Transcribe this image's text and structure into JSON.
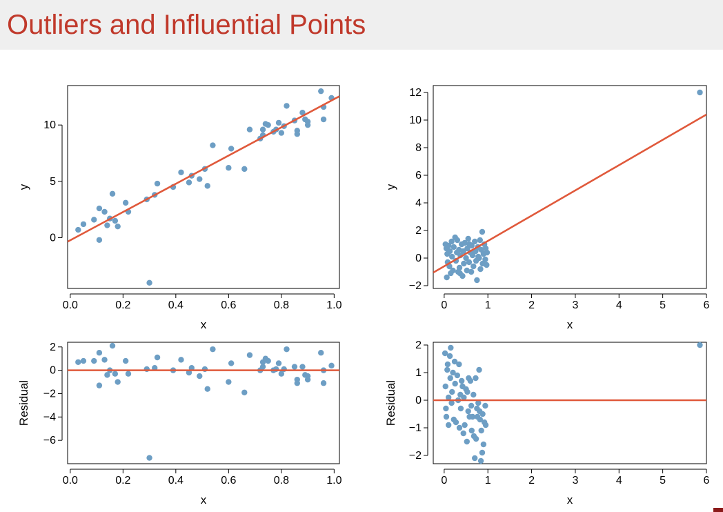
{
  "title": "Outliers and Influential Points",
  "colors": {
    "title": "#c0392b",
    "points": "#6d9ec4",
    "line": "#e0593b",
    "band": "#efefef"
  },
  "chart_data": [
    {
      "id": "p1",
      "type": "scatter",
      "xlabel": "x",
      "ylabel": "y",
      "xlim": [
        -0.01,
        1.02
      ],
      "ylim": [
        -4.5,
        13.5
      ],
      "xticks": [
        "0.0",
        "0.2",
        "0.4",
        "0.6",
        "0.8",
        "1.0"
      ],
      "xtick_values": [
        0,
        0.2,
        0.4,
        0.6,
        0.8,
        1.0
      ],
      "yticks": [
        "0",
        "5",
        "10"
      ],
      "ytick_values": [
        0,
        5,
        10
      ],
      "line": {
        "x": [
          -0.01,
          1.02
        ],
        "y": [
          -0.35,
          12.55
        ]
      },
      "points": [
        [
          0.03,
          0.7
        ],
        [
          0.05,
          1.2
        ],
        [
          0.09,
          1.6
        ],
        [
          0.11,
          2.6
        ],
        [
          0.11,
          -0.2
        ],
        [
          0.13,
          2.3
        ],
        [
          0.14,
          1.1
        ],
        [
          0.15,
          1.7
        ],
        [
          0.16,
          3.9
        ],
        [
          0.17,
          1.5
        ],
        [
          0.18,
          1.0
        ],
        [
          0.21,
          3.1
        ],
        [
          0.22,
          2.3
        ],
        [
          0.29,
          3.4
        ],
        [
          0.3,
          -4.0
        ],
        [
          0.32,
          3.8
        ],
        [
          0.33,
          4.8
        ],
        [
          0.39,
          4.5
        ],
        [
          0.42,
          5.8
        ],
        [
          0.45,
          4.9
        ],
        [
          0.46,
          5.5
        ],
        [
          0.49,
          5.2
        ],
        [
          0.51,
          6.1
        ],
        [
          0.52,
          4.6
        ],
        [
          0.54,
          8.2
        ],
        [
          0.6,
          6.2
        ],
        [
          0.61,
          7.9
        ],
        [
          0.66,
          6.1
        ],
        [
          0.68,
          9.6
        ],
        [
          0.72,
          8.8
        ],
        [
          0.73,
          9.1
        ],
        [
          0.73,
          9.6
        ],
        [
          0.74,
          10.1
        ],
        [
          0.75,
          10.0
        ],
        [
          0.77,
          9.4
        ],
        [
          0.78,
          9.6
        ],
        [
          0.79,
          10.2
        ],
        [
          0.8,
          9.3
        ],
        [
          0.81,
          9.9
        ],
        [
          0.82,
          11.7
        ],
        [
          0.85,
          10.4
        ],
        [
          0.86,
          9.2
        ],
        [
          0.86,
          9.5
        ],
        [
          0.88,
          11.1
        ],
        [
          0.89,
          10.5
        ],
        [
          0.9,
          10.0
        ],
        [
          0.9,
          10.3
        ],
        [
          0.95,
          13.0
        ],
        [
          0.96,
          10.5
        ],
        [
          0.96,
          11.6
        ],
        [
          0.99,
          12.4
        ]
      ]
    },
    {
      "id": "p2",
      "type": "scatter",
      "xlabel": "x",
      "ylabel": "y",
      "xlim": [
        -0.25,
        6.0
      ],
      "ylim": [
        -2.2,
        12.5
      ],
      "xticks": [
        "0",
        "1",
        "2",
        "3",
        "4",
        "5",
        "6"
      ],
      "xtick_values": [
        0,
        1,
        2,
        3,
        4,
        5,
        6
      ],
      "yticks": [
        "−2",
        "0",
        "2",
        "4",
        "6",
        "8",
        "10",
        "12"
      ],
      "ytick_values": [
        -2,
        0,
        2,
        4,
        6,
        8,
        10,
        12
      ],
      "line": {
        "x": [
          -0.25,
          6.0
        ],
        "y": [
          -1.05,
          10.4
        ]
      },
      "points": [
        [
          0.03,
          1.0
        ],
        [
          0.05,
          0.7
        ],
        [
          0.07,
          0.3
        ],
        [
          0.08,
          -0.3
        ],
        [
          0.1,
          0.9
        ],
        [
          0.12,
          -0.6
        ],
        [
          0.13,
          0.5
        ],
        [
          0.15,
          -1.1
        ],
        [
          0.17,
          1.2
        ],
        [
          0.18,
          0.1
        ],
        [
          0.2,
          -0.9
        ],
        [
          0.22,
          0.8
        ],
        [
          0.25,
          1.5
        ],
        [
          0.27,
          -0.2
        ],
        [
          0.29,
          0.4
        ],
        [
          0.3,
          1.3
        ],
        [
          0.32,
          -1.0
        ],
        [
          0.34,
          0.6
        ],
        [
          0.35,
          -0.7
        ],
        [
          0.37,
          0.2
        ],
        [
          0.4,
          1.0
        ],
        [
          0.42,
          -1.3
        ],
        [
          0.44,
          0.5
        ],
        [
          0.45,
          -0.4
        ],
        [
          0.47,
          1.1
        ],
        [
          0.5,
          0.0
        ],
        [
          0.52,
          -0.9
        ],
        [
          0.53,
          0.7
        ],
        [
          0.55,
          1.4
        ],
        [
          0.57,
          -0.3
        ],
        [
          0.6,
          0.4
        ],
        [
          0.62,
          -1.0
        ],
        [
          0.63,
          0.9
        ],
        [
          0.65,
          0.2
        ],
        [
          0.67,
          -0.6
        ],
        [
          0.7,
          1.2
        ],
        [
          0.72,
          0.5
        ],
        [
          0.73,
          -0.2
        ],
        [
          0.75,
          -1.6
        ],
        [
          0.77,
          0.8
        ],
        [
          0.8,
          0.0
        ],
        [
          0.82,
          1.3
        ],
        [
          0.83,
          -0.8
        ],
        [
          0.85,
          0.6
        ],
        [
          0.87,
          1.9
        ],
        [
          0.88,
          -0.4
        ],
        [
          0.9,
          0.3
        ],
        [
          0.92,
          1.0
        ],
        [
          0.94,
          -0.1
        ],
        [
          0.95,
          0.7
        ],
        [
          0.97,
          -0.5
        ],
        [
          0.98,
          0.4
        ],
        [
          0.06,
          -1.4
        ],
        [
          0.36,
          -1.1
        ],
        [
          0.58,
          1.0
        ],
        [
          0.78,
          0.1
        ],
        [
          5.85,
          12.0
        ]
      ]
    },
    {
      "id": "p3",
      "type": "scatter",
      "xlabel": "x",
      "ylabel": "Residual",
      "xlim": [
        -0.01,
        1.02
      ],
      "ylim": [
        -8.0,
        2.4
      ],
      "xticks": [
        "0.0",
        "0.2",
        "0.4",
        "0.6",
        "0.8",
        "1.0"
      ],
      "xtick_values": [
        0,
        0.2,
        0.4,
        0.6,
        0.8,
        1.0
      ],
      "yticks": [
        "−6",
        "−4",
        "−2",
        "0",
        "2"
      ],
      "ytick_values": [
        -6,
        -4,
        -2,
        0,
        2
      ],
      "line": {
        "x": [
          -0.01,
          1.02
        ],
        "y": [
          0,
          0
        ]
      },
      "points": [
        [
          0.03,
          0.7
        ],
        [
          0.05,
          0.8
        ],
        [
          0.09,
          0.8
        ],
        [
          0.11,
          1.5
        ],
        [
          0.11,
          -1.3
        ],
        [
          0.13,
          0.9
        ],
        [
          0.14,
          -0.4
        ],
        [
          0.15,
          0.0
        ],
        [
          0.16,
          2.1
        ],
        [
          0.17,
          -0.3
        ],
        [
          0.18,
          -1.0
        ],
        [
          0.21,
          0.8
        ],
        [
          0.22,
          -0.3
        ],
        [
          0.29,
          0.1
        ],
        [
          0.3,
          -7.5
        ],
        [
          0.32,
          0.2
        ],
        [
          0.33,
          1.1
        ],
        [
          0.39,
          0.0
        ],
        [
          0.42,
          0.9
        ],
        [
          0.45,
          -0.2
        ],
        [
          0.46,
          0.2
        ],
        [
          0.49,
          -0.5
        ],
        [
          0.51,
          0.1
        ],
        [
          0.52,
          -1.6
        ],
        [
          0.54,
          1.8
        ],
        [
          0.6,
          -1.0
        ],
        [
          0.61,
          0.6
        ],
        [
          0.66,
          -1.9
        ],
        [
          0.68,
          1.3
        ],
        [
          0.72,
          0.0
        ],
        [
          0.73,
          0.3
        ],
        [
          0.73,
          0.7
        ],
        [
          0.74,
          1.0
        ],
        [
          0.75,
          0.8
        ],
        [
          0.77,
          0.0
        ],
        [
          0.78,
          0.1
        ],
        [
          0.79,
          0.6
        ],
        [
          0.8,
          -0.3
        ],
        [
          0.81,
          0.1
        ],
        [
          0.82,
          1.8
        ],
        [
          0.85,
          0.3
        ],
        [
          0.86,
          -1.1
        ],
        [
          0.86,
          -0.8
        ],
        [
          0.88,
          0.3
        ],
        [
          0.89,
          -0.4
        ],
        [
          0.9,
          -0.8
        ],
        [
          0.9,
          -0.5
        ],
        [
          0.95,
          1.5
        ],
        [
          0.96,
          -1.1
        ],
        [
          0.96,
          0.0
        ],
        [
          0.99,
          0.4
        ]
      ]
    },
    {
      "id": "p4",
      "type": "scatter",
      "xlabel": "x",
      "ylabel": "Residual",
      "xlim": [
        -0.25,
        6.0
      ],
      "ylim": [
        -2.3,
        2.1
      ],
      "xticks": [
        "0",
        "1",
        "2",
        "3",
        "4",
        "5",
        "6"
      ],
      "xtick_values": [
        0,
        1,
        2,
        3,
        4,
        5,
        6
      ],
      "yticks": [
        "−2",
        "−1",
        "0",
        "1",
        "2"
      ],
      "ytick_values": [
        -2,
        -1,
        0,
        1,
        2
      ],
      "line": {
        "x": [
          -0.25,
          6.0
        ],
        "y": [
          0,
          0
        ]
      },
      "points": [
        [
          0.02,
          1.7
        ],
        [
          0.03,
          0.5
        ],
        [
          0.04,
          -0.3
        ],
        [
          0.05,
          -0.6
        ],
        [
          0.07,
          1.1
        ],
        [
          0.08,
          1.3
        ],
        [
          0.1,
          0.1
        ],
        [
          0.1,
          -0.9
        ],
        [
          0.13,
          1.6
        ],
        [
          0.14,
          0.8
        ],
        [
          0.15,
          1.9
        ],
        [
          0.17,
          -0.1
        ],
        [
          0.18,
          0.3
        ],
        [
          0.2,
          1.0
        ],
        [
          0.22,
          -0.7
        ],
        [
          0.24,
          1.4
        ],
        [
          0.25,
          0.6
        ],
        [
          0.27,
          -0.8
        ],
        [
          0.3,
          0.9
        ],
        [
          0.32,
          0.0
        ],
        [
          0.34,
          1.3
        ],
        [
          0.35,
          -1.0
        ],
        [
          0.37,
          0.2
        ],
        [
          0.38,
          -0.3
        ],
        [
          0.4,
          0.7
        ],
        [
          0.42,
          0.5
        ],
        [
          0.44,
          -1.2
        ],
        [
          0.45,
          0.1
        ],
        [
          0.47,
          -0.9
        ],
        [
          0.5,
          0.4
        ],
        [
          0.52,
          -1.5
        ],
        [
          0.53,
          0.3
        ],
        [
          0.55,
          -0.4
        ],
        [
          0.56,
          0.8
        ],
        [
          0.58,
          -0.6
        ],
        [
          0.6,
          0.7
        ],
        [
          0.62,
          -0.2
        ],
        [
          0.63,
          -1.1
        ],
        [
          0.65,
          -0.6
        ],
        [
          0.67,
          0.2
        ],
        [
          0.68,
          -1.3
        ],
        [
          0.7,
          -2.1
        ],
        [
          0.72,
          0.8
        ],
        [
          0.73,
          -1.4
        ],
        [
          0.75,
          -0.3
        ],
        [
          0.76,
          -0.6
        ],
        [
          0.78,
          -0.1
        ],
        [
          0.8,
          1.1
        ],
        [
          0.81,
          -0.4
        ],
        [
          0.82,
          -0.7
        ],
        [
          0.84,
          -2.2
        ],
        [
          0.85,
          -1.1
        ],
        [
          0.87,
          -1.9
        ],
        [
          0.88,
          -0.5
        ],
        [
          0.9,
          -1.6
        ],
        [
          0.92,
          -0.8
        ],
        [
          0.94,
          -0.2
        ],
        [
          0.95,
          -0.9
        ],
        [
          5.85,
          2.0
        ]
      ]
    }
  ]
}
